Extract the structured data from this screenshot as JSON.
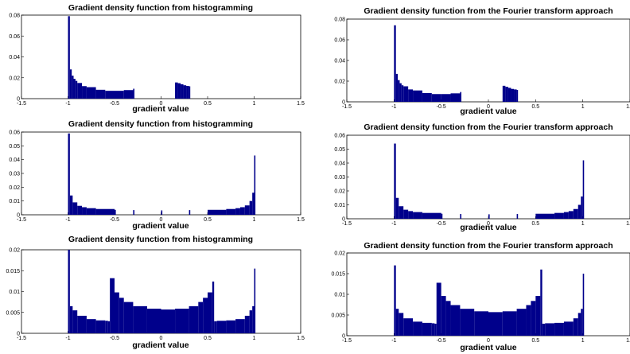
{
  "chart_data": [
    {
      "type": "bar",
      "title": "Gradient density function from histogramming",
      "xlabel": "gradient value",
      "ylabel": "",
      "xlim": [
        -1.5,
        1.5
      ],
      "ylim": [
        0,
        0.08
      ],
      "xticks": [
        "-1.5",
        "-1",
        "-0.5",
        "0",
        "0.5",
        "1",
        "1.5"
      ],
      "yticks": [
        "0",
        "0.02",
        "0.04",
        "0.06",
        "0.08"
      ],
      "color": "#00008B",
      "x": [
        -1.0,
        -0.98,
        -0.96,
        -0.94,
        -0.92,
        -0.9,
        -0.85,
        -0.8,
        -0.7,
        -0.6,
        -0.5,
        -0.4,
        -0.3,
        0.15,
        0.18,
        0.21,
        0.24,
        0.27,
        0.3
      ],
      "values": [
        0.079,
        0.028,
        0.022,
        0.019,
        0.017,
        0.015,
        0.012,
        0.011,
        0.0085,
        0.0075,
        0.0075,
        0.0082,
        0.0095,
        0.0155,
        0.0148,
        0.0138,
        0.0128,
        0.0122,
        0.0118
      ]
    },
    {
      "type": "bar",
      "title": "Gradient density function from the Fourier transform approach",
      "xlabel": "gradient value",
      "ylabel": "",
      "xlim": [
        -1.5,
        1.5
      ],
      "ylim": [
        0,
        0.08
      ],
      "xticks": [
        "-1.5",
        "-1",
        "-0.5",
        "0",
        "0.5",
        "1",
        "1.5"
      ],
      "yticks": [
        "0",
        "0.02",
        "0.04",
        "0.06",
        "0.08"
      ],
      "color": "#00008B",
      "x": [
        -1.0,
        -0.98,
        -0.96,
        -0.94,
        -0.92,
        -0.9,
        -0.85,
        -0.8,
        -0.7,
        -0.6,
        -0.5,
        -0.4,
        -0.3,
        0.15,
        0.18,
        0.21,
        0.24,
        0.27,
        0.3
      ],
      "values": [
        0.074,
        0.027,
        0.021,
        0.018,
        0.016,
        0.015,
        0.012,
        0.011,
        0.0085,
        0.0075,
        0.0075,
        0.0082,
        0.0095,
        0.0155,
        0.0145,
        0.0135,
        0.0125,
        0.012,
        0.0115
      ]
    },
    {
      "type": "bar",
      "title": "Gradient density function from histogramming",
      "xlabel": "gradient value",
      "ylabel": "",
      "xlim": [
        -1.5,
        1.5
      ],
      "ylim": [
        0,
        0.06
      ],
      "xticks": [
        "-1.5",
        "-1",
        "-0.5",
        "0",
        "0.5",
        "1",
        "1.5"
      ],
      "yticks": [
        "0",
        "0.01",
        "0.02",
        "0.03",
        "0.04",
        "0.05",
        "0.06"
      ],
      "color": "#00008B",
      "x": [
        -1.0,
        -0.98,
        -0.95,
        -0.9,
        -0.85,
        -0.8,
        -0.7,
        -0.5,
        -0.3,
        0.0,
        0.3,
        0.5,
        0.7,
        0.8,
        0.85,
        0.9,
        0.95,
        0.98,
        1.0
      ],
      "values": [
        0.059,
        0.014,
        0.009,
        0.0065,
        0.0055,
        0.0048,
        0.0042,
        0.0036,
        0.0034,
        0.0032,
        0.0034,
        0.0036,
        0.0042,
        0.0048,
        0.0055,
        0.0068,
        0.01,
        0.016,
        0.043
      ]
    },
    {
      "type": "bar",
      "title": "Gradient density function from the Fourier transform approach",
      "xlabel": "gradient value",
      "ylabel": "",
      "xlim": [
        -1.5,
        1.5
      ],
      "ylim": [
        0,
        0.06
      ],
      "xticks": [
        "-1.5",
        "-1",
        "-0.5",
        "0",
        "0.5",
        "1",
        "1.5"
      ],
      "yticks": [
        "0",
        "0.01",
        "0.02",
        "0.03",
        "0.04",
        "0.05",
        "0.06"
      ],
      "color": "#00008B",
      "x": [
        -1.0,
        -0.98,
        -0.95,
        -0.9,
        -0.85,
        -0.8,
        -0.7,
        -0.5,
        -0.3,
        0.0,
        0.3,
        0.5,
        0.7,
        0.8,
        0.85,
        0.9,
        0.95,
        0.98,
        1.0
      ],
      "values": [
        0.054,
        0.015,
        0.009,
        0.0065,
        0.0055,
        0.0048,
        0.0042,
        0.0036,
        0.0034,
        0.0032,
        0.0034,
        0.0036,
        0.0042,
        0.0048,
        0.0055,
        0.007,
        0.01,
        0.016,
        0.042
      ]
    },
    {
      "type": "bar",
      "title": "Gradient density function from histogramming",
      "xlabel": "gradient value",
      "ylabel": "",
      "xlim": [
        -1.5,
        1.5
      ],
      "ylim": [
        0,
        0.02
      ],
      "xticks": [
        "-1.5",
        "-1",
        "-0.5",
        "0",
        "0.5",
        "1",
        "1.5"
      ],
      "yticks": [
        "0",
        "0.005",
        "0.01",
        "0.015",
        "0.02"
      ],
      "color": "#00008B",
      "x": [
        -1.0,
        -0.98,
        -0.95,
        -0.9,
        -0.8,
        -0.7,
        -0.6,
        -0.57,
        -0.55,
        -0.5,
        -0.45,
        -0.4,
        -0.3,
        -0.15,
        0.0,
        0.15,
        0.3,
        0.4,
        0.45,
        0.5,
        0.55,
        0.57,
        0.6,
        0.7,
        0.8,
        0.9,
        0.95,
        0.98,
        1.0
      ],
      "values": [
        0.02,
        0.0065,
        0.0055,
        0.0042,
        0.0034,
        0.0031,
        0.003,
        0.0029,
        0.0132,
        0.0098,
        0.0085,
        0.0075,
        0.0065,
        0.0059,
        0.0057,
        0.0059,
        0.0065,
        0.0075,
        0.0085,
        0.0098,
        0.0124,
        0.0029,
        0.003,
        0.0031,
        0.0034,
        0.0042,
        0.0055,
        0.0065,
        0.0155
      ]
    },
    {
      "type": "bar",
      "title": "Gradient density function from the Fourier transform approach",
      "xlabel": "gradient value",
      "ylabel": "",
      "xlim": [
        -1.5,
        1.5
      ],
      "ylim": [
        0,
        0.02
      ],
      "xticks": [
        "-1.5",
        "-1",
        "-0.5",
        "0",
        "0.5",
        "1",
        "1.5"
      ],
      "yticks": [
        "0",
        "0.005",
        "0.01",
        "0.015",
        "0.02"
      ],
      "color": "#00008B",
      "x": [
        -1.0,
        -0.98,
        -0.95,
        -0.9,
        -0.8,
        -0.7,
        -0.6,
        -0.57,
        -0.55,
        -0.5,
        -0.45,
        -0.4,
        -0.3,
        -0.15,
        0.0,
        0.15,
        0.3,
        0.4,
        0.45,
        0.5,
        0.55,
        0.57,
        0.6,
        0.7,
        0.8,
        0.9,
        0.95,
        0.98,
        1.0
      ],
      "values": [
        0.017,
        0.0065,
        0.0055,
        0.0042,
        0.0034,
        0.0031,
        0.003,
        0.0029,
        0.0128,
        0.0096,
        0.0084,
        0.0074,
        0.0065,
        0.0059,
        0.0057,
        0.0059,
        0.0065,
        0.0074,
        0.0084,
        0.0096,
        0.016,
        0.0029,
        0.003,
        0.0031,
        0.0034,
        0.0042,
        0.0055,
        0.0065,
        0.015
      ]
    }
  ]
}
